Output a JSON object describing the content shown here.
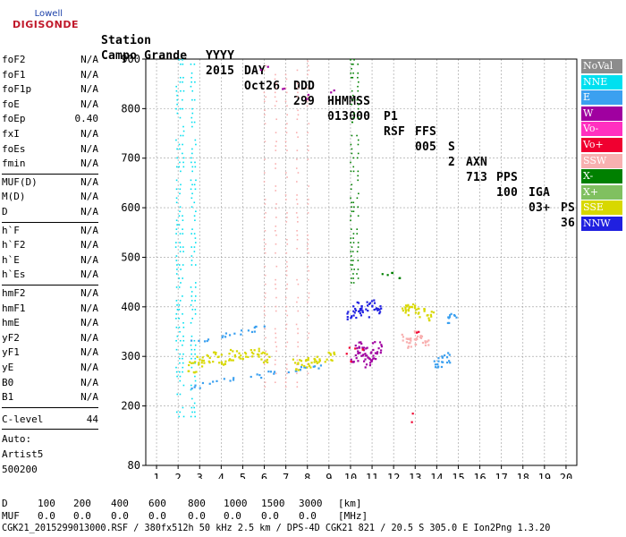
{
  "logo": {
    "line1": "Lowell",
    "line2": "DIGISONDE"
  },
  "header": {
    "labels": [
      "Station",
      "YYYY",
      "DAY",
      "DDD",
      "HHMMSS",
      "P1",
      "FFS",
      "S",
      "AXN",
      "PPS",
      "IGA",
      "PS"
    ],
    "values": [
      "Campo Grande",
      "2015",
      "Oct26",
      "299",
      "013000",
      "RSF",
      "005",
      "2",
      "713",
      "100",
      "03+",
      "36"
    ]
  },
  "scaled_params": {
    "group1": [
      {
        "name": "foF2",
        "value": "N/A"
      },
      {
        "name": "foF1",
        "value": "N/A"
      },
      {
        "name": "foF1p",
        "value": "N/A"
      },
      {
        "name": "foE",
        "value": "N/A"
      },
      {
        "name": "foEp",
        "value": "0.40"
      },
      {
        "name": "fxI",
        "value": "N/A"
      },
      {
        "name": "foEs",
        "value": "N/A"
      },
      {
        "name": "fmin",
        "value": "N/A"
      }
    ],
    "group2": [
      {
        "name": "MUF(D)",
        "value": "N/A"
      },
      {
        "name": "M(D)",
        "value": "N/A"
      },
      {
        "name": "D",
        "value": "N/A"
      }
    ],
    "group3": [
      {
        "name": "h`F",
        "value": "N/A"
      },
      {
        "name": "h`F2",
        "value": "N/A"
      },
      {
        "name": "h`E",
        "value": "N/A"
      },
      {
        "name": "h`Es",
        "value": "N/A"
      }
    ],
    "group4": [
      {
        "name": "hmF2",
        "value": "N/A"
      },
      {
        "name": "hmF1",
        "value": "N/A"
      },
      {
        "name": "hmE",
        "value": "N/A"
      },
      {
        "name": "yF2",
        "value": "N/A"
      },
      {
        "name": "yF1",
        "value": "N/A"
      },
      {
        "name": "yE",
        "value": "N/A"
      },
      {
        "name": "B0",
        "value": "N/A"
      },
      {
        "name": "B1",
        "value": "N/A"
      }
    ],
    "c_level": {
      "name": "C-level",
      "value": "44"
    },
    "auto": [
      "Auto:",
      "Artist5",
      "500200"
    ]
  },
  "legend": [
    {
      "label": "NoVal",
      "color": "#8c8c8c"
    },
    {
      "label": "NNE",
      "color": "#00e0f0"
    },
    {
      "label": "E",
      "color": "#3ba0f0"
    },
    {
      "label": "W",
      "color": "#a000a0"
    },
    {
      "label": "Vo-",
      "color": "#ff30c0"
    },
    {
      "label": "Vo+",
      "color": "#f00030"
    },
    {
      "label": "SSW",
      "color": "#f8b0b0"
    },
    {
      "label": "X-",
      "color": "#008000"
    },
    {
      "label": "X+",
      "color": "#80c060"
    },
    {
      "label": "SSE",
      "color": "#d8d800"
    },
    {
      "label": "NNW",
      "color": "#2020e0"
    }
  ],
  "mufs": {
    "d_label": "D",
    "d_values": [
      "100",
      "200",
      "400",
      "600",
      "800",
      "1000",
      "1500",
      "3000",
      "[km]"
    ],
    "muf_label": "MUF",
    "muf_values": [
      "0.0",
      "0.0",
      "0.0",
      "0.0",
      "0.0",
      "0.0",
      "0.0",
      "0.0",
      "[MHz]"
    ]
  },
  "footer": "CGK21_2015299013000.RSF / 380fx512h 50 kHz 2.5 km / DPS-4D CGK21 821 / 20.5 S 305.0 E Ion2Png 1.3.20",
  "chart_data": {
    "type": "scatter",
    "title": "",
    "xlabel": "",
    "ylabel": "",
    "xlim": [
      0.5,
      20.5
    ],
    "ylim": [
      80,
      900
    ],
    "xticks": [
      1,
      2,
      3,
      4,
      5,
      6,
      7,
      8,
      9,
      10,
      11,
      12,
      13,
      14,
      15,
      16,
      17,
      18,
      19,
      20
    ],
    "yticks": [
      80,
      200,
      300,
      400,
      500,
      600,
      700,
      800,
      900
    ],
    "grid": true,
    "legend_position": "right",
    "series": [
      {
        "name": "NNE",
        "color": "#00e0f0",
        "traces": [
          {
            "x": [
              1.9,
              2.05,
              2.2,
              2.6,
              2.75
            ],
            "y_range": [
              180,
              900
            ],
            "kind": "vertical"
          }
        ]
      },
      {
        "name": "E",
        "color": "#3ba0f0",
        "traces": [
          {
            "x": [
              2.6,
              3.5,
              4.5,
              5.5,
              6.5,
              7.2,
              8.0,
              8.5
            ],
            "y": [
              240,
              250,
              255,
              262,
              268,
              272,
              278,
              280
            ],
            "kind": "line"
          },
          {
            "x": [
              3.0,
              3.8,
              4.6,
              5.2,
              5.8
            ],
            "y": [
              330,
              340,
              348,
              355,
              362
            ],
            "kind": "line"
          },
          {
            "x": [
              14.0,
              14.4,
              14.7
            ],
            "y": [
              290,
              300,
              380
            ],
            "kind": "cluster"
          }
        ]
      },
      {
        "name": "W",
        "color": "#a000a0",
        "traces": [
          {
            "x": [
              10.2,
              10.4,
              10.6,
              10.8,
              11.0,
              11.2
            ],
            "y": [
              300,
              320,
              310,
              290,
              305,
              320
            ],
            "kind": "cluster"
          },
          {
            "x": [
              6.0,
              7.0,
              8.1,
              9.0
            ],
            "y": [
              880,
              840,
              820,
              830
            ],
            "kind": "sparse"
          }
        ]
      },
      {
        "name": "SSW",
        "color": "#f8b0b0",
        "traces": [
          {
            "x": [
              6.0,
              6.5,
              7.0,
              7.5,
              8.0
            ],
            "y_range": [
              240,
              900
            ],
            "kind": "vertical"
          },
          {
            "x": [
              12.5,
              12.8,
              13.1,
              13.4
            ],
            "y": [
              340,
              330,
              345,
              335
            ],
            "kind": "cluster"
          }
        ]
      },
      {
        "name": "SSE",
        "color": "#d8d800",
        "traces": [
          {
            "x": [
              2.6,
              3.0,
              3.5,
              4.0,
              4.5,
              5.0,
              5.5,
              6.0
            ],
            "y": [
              280,
              290,
              300,
              295,
              305,
              300,
              310,
              300
            ],
            "kind": "cluster"
          },
          {
            "x": [
              7.5,
              8.0,
              8.5,
              9.0
            ],
            "y": [
              285,
              290,
              295,
              300
            ],
            "kind": "cluster"
          },
          {
            "x": [
              12.5,
              12.8,
              13.2,
              13.6
            ],
            "y": [
              395,
              400,
              390,
              385
            ],
            "kind": "cluster"
          }
        ]
      },
      {
        "name": "NNW",
        "color": "#2020e0",
        "traces": [
          {
            "x": [
              10.0,
              10.3,
              10.6,
              10.9,
              11.2
            ],
            "y": [
              385,
              400,
              390,
              405,
              395
            ],
            "kind": "cluster"
          }
        ]
      },
      {
        "name": "X-",
        "color": "#008000",
        "traces": [
          {
            "x": [
              10.0,
              10.1,
              10.3
            ],
            "y_range": [
              450,
              900
            ],
            "kind": "vertical"
          },
          {
            "x": [
              11.5,
              12.0,
              12.3
            ],
            "y": [
              470,
              470,
              470
            ],
            "kind": "sparse"
          }
        ]
      },
      {
        "name": "Vo+",
        "color": "#f00030",
        "traces": [
          {
            "x": [
              9.8,
              10.1,
              10.4,
              12.9,
              13.0
            ],
            "y": [
              300,
              320,
              310,
              360,
              180
            ],
            "kind": "sparse"
          }
        ]
      }
    ]
  }
}
